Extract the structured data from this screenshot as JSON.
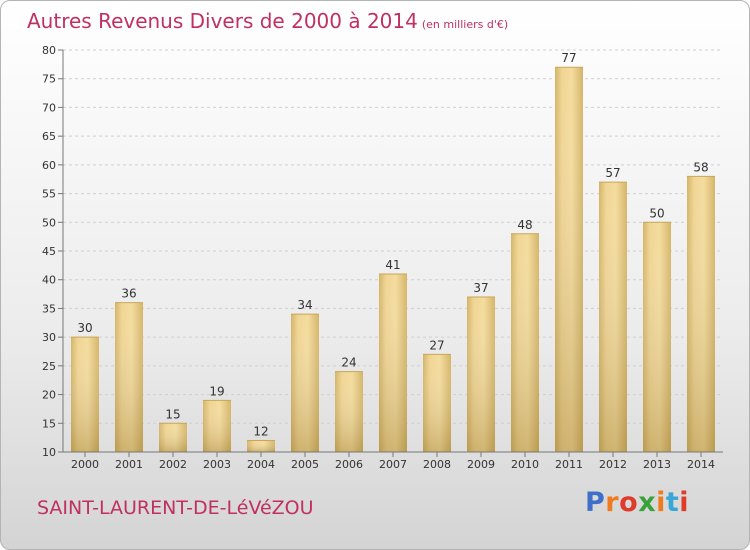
{
  "chart_data": {
    "type": "bar",
    "title": "Autres Revenus Divers de 2000 à 2014",
    "subtitle": "(en milliers d'€)",
    "categories": [
      "2000",
      "2001",
      "2002",
      "2003",
      "2004",
      "2005",
      "2006",
      "2007",
      "2008",
      "2009",
      "2010",
      "2011",
      "2012",
      "2013",
      "2014"
    ],
    "values": [
      30,
      36,
      15,
      19,
      12,
      34,
      24,
      41,
      27,
      37,
      48,
      77,
      57,
      50,
      58
    ],
    "ylim": [
      10,
      80
    ],
    "yticks": [
      10,
      15,
      20,
      25,
      30,
      35,
      40,
      45,
      50,
      55,
      60,
      65,
      70,
      75,
      80
    ],
    "grid": true,
    "bar_color": "#f2d590"
  },
  "footer": {
    "place": "SAINT-LAURENT-DE-LéVéZOU",
    "logo": "Proxiti",
    "logo_colors": [
      "#3f6fc8",
      "#f07a1e",
      "#e03a2a",
      "#3aa23a",
      "#f07a1e",
      "#3aa6d8",
      "#e03a2a"
    ]
  }
}
